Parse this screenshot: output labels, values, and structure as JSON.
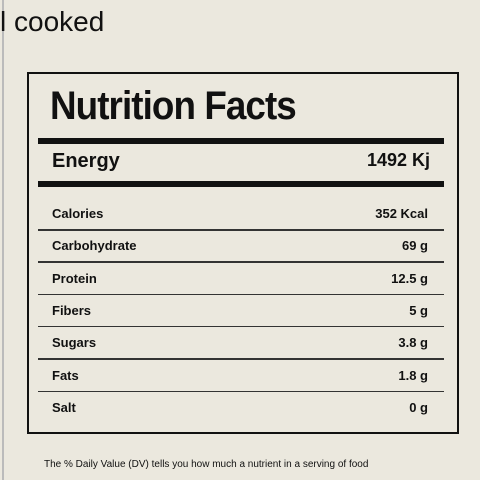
{
  "header": {
    "text": "l cooked"
  },
  "facts": {
    "title": "Nutrition Facts",
    "energy": {
      "label": "Energy",
      "value": "1492 Kj"
    },
    "rows": [
      [
        "Calories",
        "352 Kcal"
      ],
      [
        "Carbohydrate",
        "69 g"
      ],
      [
        "Protein",
        "12.5 g"
      ],
      [
        "Fibers",
        "5 g"
      ],
      [
        "Sugars",
        "3.8 g"
      ],
      [
        "Fats",
        "1.8 g"
      ],
      [
        "Salt",
        "0 g"
      ]
    ]
  },
  "footnote": "The % Daily Value (DV) tells you how much a nutrient in a serving of food"
}
